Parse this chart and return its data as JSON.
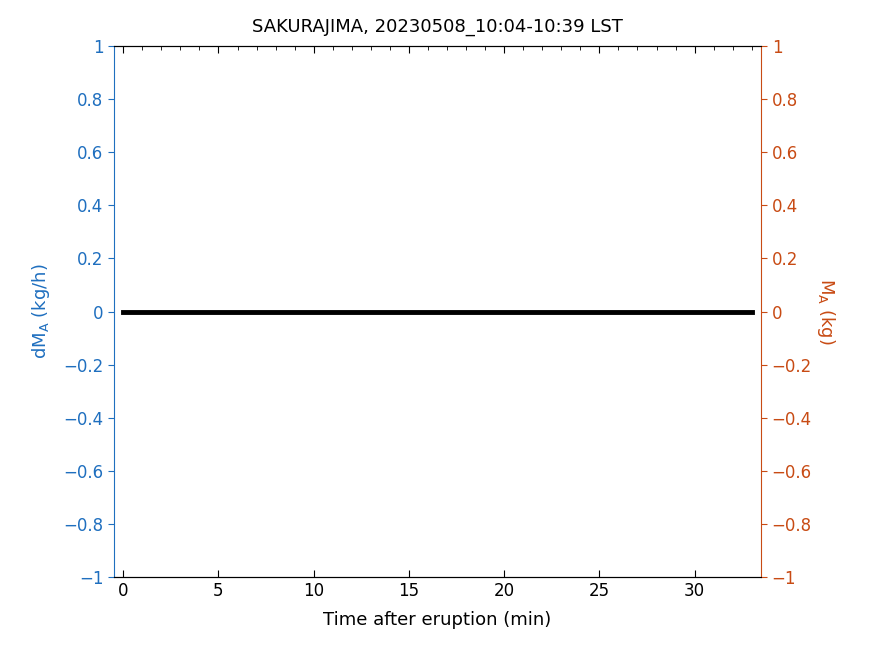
{
  "title": "SAKURAJIMA, 20230508_10:04-10:39 LST",
  "title_fontsize": 13,
  "xlabel": "Time after eruption (min)",
  "ylabel_left": "dM_A (kg/h)",
  "ylabel_right": "M_A (kg)",
  "left_color": "#1F6FBF",
  "right_color": "#C84B14",
  "line_color": "#000000",
  "line_width": 3.5,
  "xlim": [
    -0.5,
    33.5
  ],
  "ylim": [
    -1,
    1
  ],
  "xticks": [
    0,
    5,
    10,
    15,
    20,
    25,
    30
  ],
  "yticks_left": [
    -1,
    -0.8,
    -0.6,
    -0.4,
    -0.2,
    0,
    0.2,
    0.4,
    0.6,
    0.8,
    1
  ],
  "ytick_labels_left": [
    "−1",
    "−0.8",
    "−0.6",
    "−0.4",
    "−0.2",
    "0",
    "0.2",
    "0.4",
    "0.6",
    "0.8",
    "1"
  ],
  "ytick_labels_right": [
    "−1",
    "−0.8",
    "−0.6",
    "−0.4",
    "−0.2",
    "0",
    "0.2",
    "0.4",
    "0.6",
    "0.8",
    "1"
  ],
  "x_data": [
    0,
    33
  ],
  "y_data": [
    0,
    0
  ],
  "bg_color": "#ffffff",
  "spine_color": "#000000",
  "label_fontsize": 13,
  "tick_fontsize": 12
}
